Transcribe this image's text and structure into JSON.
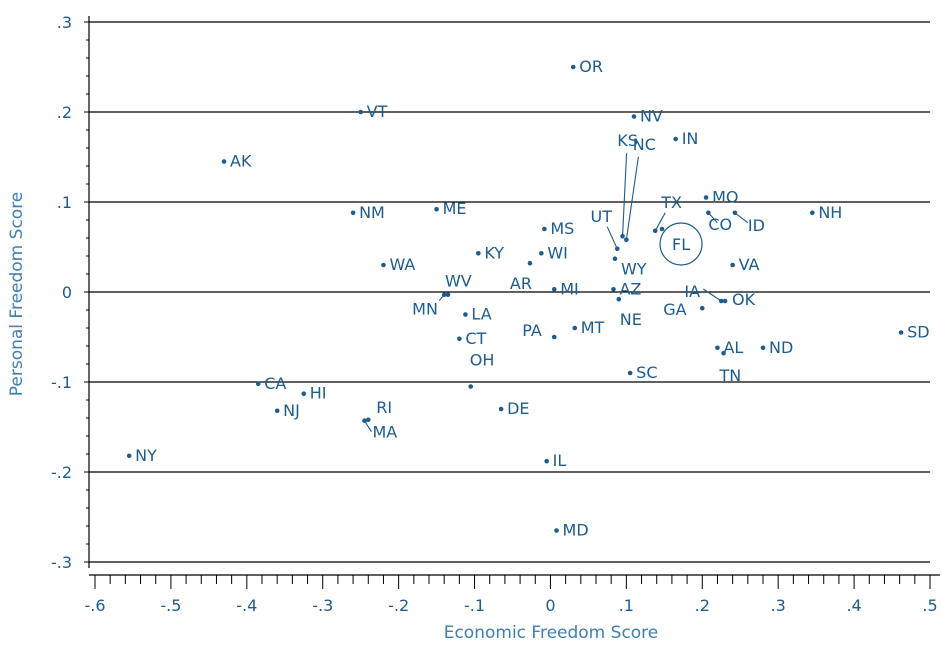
{
  "chart_data": {
    "type": "scatter",
    "xlabel": "Economic Freedom Score",
    "ylabel": "Personal Freedom Score",
    "xlim": [
      -0.6,
      0.5
    ],
    "ylim": [
      -0.3,
      0.3
    ],
    "x_major_ticks": [
      -0.6,
      -0.5,
      -0.4,
      -0.3,
      -0.2,
      -0.1,
      0,
      0.1,
      0.2,
      0.3,
      0.4,
      0.5
    ],
    "x_tick_labels": [
      "-.6",
      "-.5",
      "-.4",
      "-.3",
      "-.2",
      "-.1",
      "0",
      ".1",
      ".2",
      ".3",
      ".4",
      ".5"
    ],
    "y_major_ticks": [
      -0.3,
      -0.2,
      -0.1,
      0,
      0.1,
      0.2,
      0.3
    ],
    "y_tick_labels": [
      "-.3",
      "-.2",
      "-.1",
      "0",
      ".1",
      ".2",
      ".3"
    ],
    "grid": "horizontal",
    "highlight": "FL",
    "points": [
      {
        "label": "OR",
        "x": 0.03,
        "y": 0.25
      },
      {
        "label": "VT",
        "x": -0.25,
        "y": 0.2
      },
      {
        "label": "NV",
        "x": 0.11,
        "y": 0.195
      },
      {
        "label": "IN",
        "x": 0.165,
        "y": 0.17
      },
      {
        "label": "AK",
        "x": -0.43,
        "y": 0.145
      },
      {
        "label": "KS",
        "x": 0.095,
        "y": 0.062
      },
      {
        "label": "NC",
        "x": 0.1,
        "y": 0.058
      },
      {
        "label": "MO",
        "x": 0.205,
        "y": 0.105
      },
      {
        "label": "UT",
        "x": 0.088,
        "y": 0.048
      },
      {
        "label": "TX",
        "x": 0.138,
        "y": 0.068
      },
      {
        "label": "CO",
        "x": 0.208,
        "y": 0.088
      },
      {
        "label": "ID",
        "x": 0.243,
        "y": 0.088
      },
      {
        "label": "NH",
        "x": 0.345,
        "y": 0.088
      },
      {
        "label": "NM",
        "x": -0.26,
        "y": 0.088
      },
      {
        "label": "ME",
        "x": -0.15,
        "y": 0.092
      },
      {
        "label": "MS",
        "x": -0.008,
        "y": 0.07
      },
      {
        "label": "FL",
        "x": 0.147,
        "y": 0.07
      },
      {
        "label": "KY",
        "x": -0.095,
        "y": 0.043
      },
      {
        "label": "WI",
        "x": -0.012,
        "y": 0.043
      },
      {
        "label": "WY",
        "x": 0.085,
        "y": 0.037
      },
      {
        "label": "VA",
        "x": 0.24,
        "y": 0.03
      },
      {
        "label": "WA",
        "x": -0.22,
        "y": 0.03
      },
      {
        "label": "AR",
        "x": -0.027,
        "y": 0.032
      },
      {
        "label": "MI",
        "x": 0.005,
        "y": 0.003
      },
      {
        "label": "AZ",
        "x": 0.083,
        "y": 0.003
      },
      {
        "label": "IA",
        "x": 0.225,
        "y": -0.01
      },
      {
        "label": "OK",
        "x": 0.23,
        "y": -0.01
      },
      {
        "label": "WV",
        "x": -0.135,
        "y": -0.003
      },
      {
        "label": "MN",
        "x": -0.14,
        "y": -0.003
      },
      {
        "label": "NE",
        "x": 0.09,
        "y": -0.008
      },
      {
        "label": "LA",
        "x": -0.112,
        "y": -0.025
      },
      {
        "label": "GA",
        "x": 0.2,
        "y": -0.018
      },
      {
        "label": "MT",
        "x": 0.032,
        "y": -0.04
      },
      {
        "label": "PA",
        "x": 0.005,
        "y": -0.05
      },
      {
        "label": "CT",
        "x": -0.12,
        "y": -0.052
      },
      {
        "label": "SD",
        "x": 0.462,
        "y": -0.045
      },
      {
        "label": "AL",
        "x": 0.22,
        "y": -0.062
      },
      {
        "label": "ND",
        "x": 0.28,
        "y": -0.062
      },
      {
        "label": "TN",
        "x": 0.228,
        "y": -0.068
      },
      {
        "label": "SC",
        "x": 0.105,
        "y": -0.09
      },
      {
        "label": "OH",
        "x": -0.105,
        "y": -0.105
      },
      {
        "label": "CA",
        "x": -0.385,
        "y": -0.102
      },
      {
        "label": "HI",
        "x": -0.325,
        "y": -0.113
      },
      {
        "label": "NJ",
        "x": -0.36,
        "y": -0.132
      },
      {
        "label": "DE",
        "x": -0.065,
        "y": -0.13
      },
      {
        "label": "RI",
        "x": -0.24,
        "y": -0.142
      },
      {
        "label": "MA",
        "x": -0.245,
        "y": -0.143
      },
      {
        "label": "NY",
        "x": -0.555,
        "y": -0.182
      },
      {
        "label": "IL",
        "x": -0.005,
        "y": -0.188
      },
      {
        "label": "MD",
        "x": 0.008,
        "y": -0.265
      }
    ]
  },
  "colors": {
    "points": "#1d5c8f",
    "axis_title": "#3f7fb3",
    "grid": "#000000"
  }
}
